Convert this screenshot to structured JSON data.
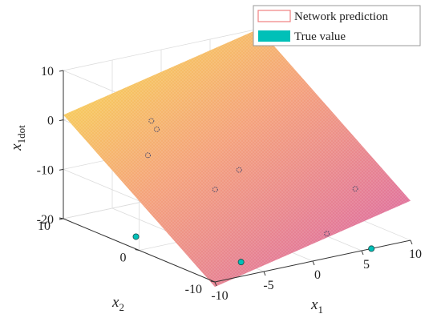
{
  "chart_data": {
    "type": "surface-3d",
    "title": "",
    "xlabel": {
      "base": "x",
      "sub": "1"
    },
    "ylabel": {
      "base": "x",
      "sub": "2"
    },
    "zlabel": {
      "base": "x",
      "sub": "1dot"
    },
    "xlim": [
      -10,
      10
    ],
    "ylim": [
      -10,
      10
    ],
    "zlim": [
      -20,
      10
    ],
    "xticks": [
      -10,
      -5,
      0,
      5,
      10
    ],
    "yticks": [
      -10,
      0,
      10
    ],
    "zticks": [
      -20,
      -10,
      0,
      10
    ],
    "grid": true,
    "legend": {
      "position": "top-right",
      "entries": [
        {
          "label": "Network prediction",
          "style": "surface-outline",
          "color": "#f08080"
        },
        {
          "label": "True value",
          "style": "filled",
          "color": "#00c0b8"
        }
      ]
    },
    "surface": {
      "name": "Network prediction",
      "corners": [
        {
          "x": -10,
          "y": -10,
          "z": -21
        },
        {
          "x": 10,
          "y": -10,
          "z": -12
        },
        {
          "x": 10,
          "y": 10,
          "z": 10
        },
        {
          "x": -10,
          "y": 10,
          "z": 1
        }
      ],
      "colors": [
        "#d85fa8",
        "#f4a07a",
        "#f8e04a"
      ]
    },
    "points": [
      {
        "name": "True value",
        "x": 6,
        "y": -10,
        "z": -20
      },
      {
        "name": "True value",
        "x": -5,
        "y": -7,
        "z": -20
      },
      {
        "name": "True value",
        "x": -8,
        "y": 3,
        "z": -20
      }
    ],
    "markers_on_surface": [
      {
        "x": -6,
        "y": 4,
        "z": -5
      },
      {
        "x": -1,
        "y": 10,
        "z": -4
      },
      {
        "x": -3,
        "y": -1,
        "z": -10
      },
      {
        "x": 1,
        "y": 1,
        "z": -9
      },
      {
        "x": 3,
        "y": -8,
        "z": -17
      },
      {
        "x": 9,
        "y": -4,
        "z": -13
      },
      {
        "x": -2,
        "y": 8,
        "z": -4
      }
    ]
  }
}
